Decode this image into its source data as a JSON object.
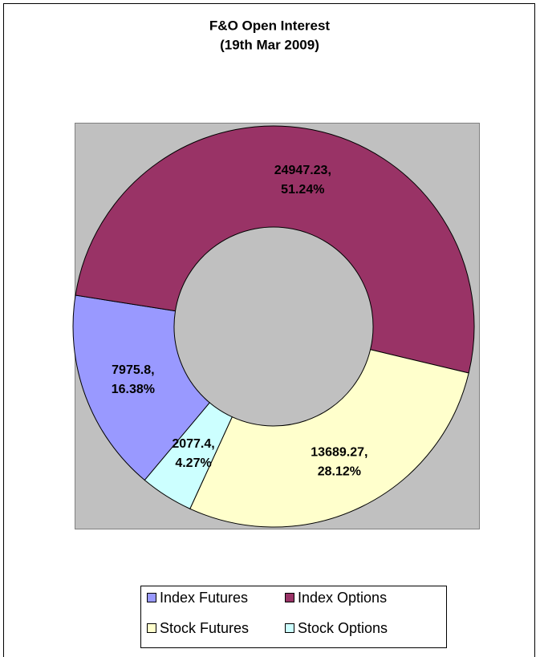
{
  "chart_data": {
    "type": "pie",
    "title": "F&O Open Interest",
    "subtitle": "(19th Mar 2009)",
    "categories": [
      "Index Futures",
      "Index Options",
      "Stock Futures",
      "Stock Options"
    ],
    "values": [
      7975.8,
      24947.23,
      13689.27,
      2077.4
    ],
    "value_labels": [
      [
        "7975.8,",
        "16.38%"
      ],
      [
        "24947.23,",
        "51.24%"
      ],
      [
        "13689.27,",
        "28.12%"
      ],
      [
        "2077.4,",
        "4.27%"
      ]
    ],
    "colors": [
      "#9999ff",
      "#993366",
      "#ffffcc",
      "#ccffff"
    ],
    "donut": true,
    "legend": "bottom"
  }
}
